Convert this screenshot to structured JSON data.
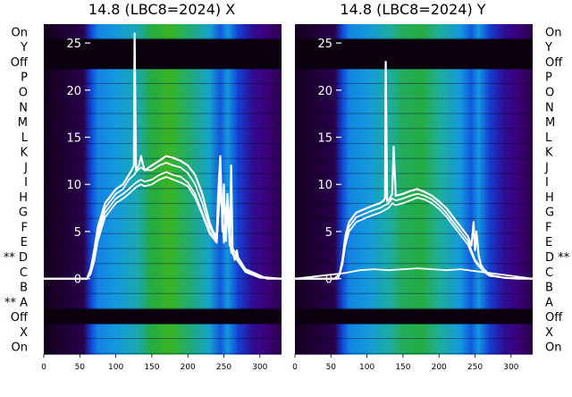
{
  "chart_data": [
    {
      "type": "heatmap",
      "title": "14.8 (LBC8=2024) X",
      "x_range": [
        0,
        330
      ],
      "x_ticks": [
        0,
        50,
        100,
        150,
        200,
        250,
        300
      ],
      "y_range": [
        -8,
        27
      ],
      "y_ticks": [
        0,
        5,
        10,
        15,
        20,
        25
      ],
      "row_labels": [
        "On",
        "Y",
        "Off",
        "P",
        "O",
        "N",
        "M",
        "L",
        "K",
        "J",
        "I",
        "H",
        "G",
        "F",
        "E",
        "** D",
        "C",
        "B",
        "** A",
        "Off",
        "X",
        "On"
      ],
      "heat_profile": [
        {
          "x": 0,
          "level": 0.0
        },
        {
          "x": 55,
          "level": 0.05
        },
        {
          "x": 65,
          "level": 0.3
        },
        {
          "x": 75,
          "level": 0.45
        },
        {
          "x": 100,
          "level": 0.5
        },
        {
          "x": 130,
          "level": 0.6
        },
        {
          "x": 150,
          "level": 0.75
        },
        {
          "x": 175,
          "level": 0.8
        },
        {
          "x": 200,
          "level": 0.7
        },
        {
          "x": 230,
          "level": 0.55
        },
        {
          "x": 245,
          "level": 0.35
        },
        {
          "x": 255,
          "level": 0.5
        },
        {
          "x": 270,
          "level": 0.3
        },
        {
          "x": 290,
          "level": 0.15
        },
        {
          "x": 310,
          "level": 0.1
        },
        {
          "x": 330,
          "level": 0.05
        }
      ],
      "dark_rows": [
        "Y",
        "Off"
      ],
      "series": [
        {
          "x": [
            0,
            60,
            65,
            70,
            75,
            85,
            100,
            110,
            118,
            122,
            125,
            126,
            128,
            132,
            135,
            138,
            140,
            150,
            160,
            170,
            180,
            190,
            200,
            210,
            220,
            225,
            230,
            235,
            240,
            242,
            245,
            248,
            250,
            253,
            255,
            258,
            260,
            262,
            265,
            268,
            270,
            280,
            295,
            310,
            320,
            330
          ],
          "y": [
            0,
            0,
            1.0,
            3.0,
            5.5,
            8.0,
            9.5,
            10.0,
            11.0,
            11.5,
            12.0,
            26.0,
            11.5,
            12.0,
            13.0,
            12.0,
            11.5,
            12.0,
            12.5,
            13.0,
            12.8,
            12.5,
            12.0,
            11.0,
            9.0,
            7.5,
            6.0,
            5.0,
            4.5,
            9.0,
            13.0,
            5.0,
            10.0,
            4.0,
            9.0,
            3.5,
            12.0,
            3.0,
            2.0,
            3.0,
            2.0,
            1.0,
            0.5,
            0,
            0,
            0
          ]
        },
        {
          "x": [
            0,
            60,
            65,
            70,
            75,
            85,
            100,
            110,
            118,
            125,
            130,
            135,
            140,
            150,
            160,
            170,
            180,
            190,
            200,
            210,
            220,
            230,
            240,
            245,
            250,
            255,
            260,
            268,
            280,
            300,
            330
          ],
          "y": [
            0,
            0,
            0.8,
            2.5,
            5.0,
            7.5,
            9.0,
            9.5,
            10.5,
            11.0,
            11.5,
            11.8,
            11.5,
            11.5,
            12.0,
            12.3,
            12.0,
            11.8,
            11.2,
            10.0,
            8.0,
            5.5,
            4.2,
            11.0,
            4.5,
            8.5,
            3.5,
            2.5,
            1.0,
            0.2,
            0
          ]
        },
        {
          "x": [
            0,
            60,
            65,
            70,
            75,
            85,
            100,
            110,
            118,
            125,
            130,
            135,
            140,
            150,
            160,
            170,
            180,
            190,
            200,
            210,
            220,
            230,
            240,
            245,
            250,
            255,
            260,
            268,
            280,
            300,
            330
          ],
          "y": [
            0,
            0,
            0.6,
            2.0,
            4.5,
            7.0,
            8.5,
            9.0,
            9.5,
            10.0,
            10.3,
            10.5,
            10.3,
            10.5,
            11.0,
            11.3,
            11.0,
            10.8,
            10.2,
            9.0,
            7.0,
            5.0,
            4.0,
            10.0,
            4.0,
            7.0,
            3.0,
            2.2,
            0.8,
            0.1,
            0
          ]
        },
        {
          "x": [
            0,
            60,
            65,
            70,
            75,
            85,
            100,
            110,
            118,
            125,
            130,
            135,
            140,
            150,
            160,
            170,
            180,
            190,
            200,
            210,
            220,
            230,
            240,
            245,
            250,
            255,
            260,
            268,
            280,
            300,
            330
          ],
          "y": [
            0,
            0,
            0.5,
            1.8,
            4.0,
            6.5,
            8.0,
            8.5,
            9.0,
            9.5,
            9.8,
            10.0,
            9.8,
            10.0,
            10.5,
            10.8,
            10.5,
            10.2,
            9.8,
            8.6,
            6.8,
            4.8,
            3.8,
            9.5,
            3.8,
            6.5,
            2.8,
            2.0,
            0.7,
            0.1,
            0
          ]
        }
      ]
    },
    {
      "type": "heatmap",
      "title": "14.8 (LBC8=2024) Y",
      "x_range": [
        0,
        330
      ],
      "x_ticks": [
        0,
        50,
        100,
        150,
        200,
        250,
        300
      ],
      "y_range": [
        -8,
        27
      ],
      "y_ticks": [
        0,
        5,
        10,
        15,
        20,
        25
      ],
      "row_labels": [
        "On",
        "Y",
        "Off",
        "P",
        "O",
        "N",
        "M",
        "L",
        "K",
        "J",
        "I",
        "H",
        "G",
        "F",
        "E",
        "D **",
        "C",
        "B",
        "A",
        "Off",
        "X",
        "On"
      ],
      "heat_profile": [
        {
          "x": 0,
          "level": 0.0
        },
        {
          "x": 55,
          "level": 0.05
        },
        {
          "x": 65,
          "level": 0.3
        },
        {
          "x": 75,
          "level": 0.45
        },
        {
          "x": 100,
          "level": 0.5
        },
        {
          "x": 130,
          "level": 0.62
        },
        {
          "x": 150,
          "level": 0.72
        },
        {
          "x": 175,
          "level": 0.75
        },
        {
          "x": 200,
          "level": 0.65
        },
        {
          "x": 230,
          "level": 0.5
        },
        {
          "x": 245,
          "level": 0.35
        },
        {
          "x": 255,
          "level": 0.5
        },
        {
          "x": 270,
          "level": 0.3
        },
        {
          "x": 290,
          "level": 0.15
        },
        {
          "x": 310,
          "level": 0.1
        },
        {
          "x": 330,
          "level": 0.05
        }
      ],
      "dark_rows": [
        "Y",
        "Off"
      ],
      "series": [
        {
          "x": [
            0,
            55,
            62,
            66,
            70,
            75,
            85,
            100,
            110,
            118,
            122,
            125,
            126,
            128,
            132,
            135,
            137,
            140,
            150,
            160,
            170,
            180,
            190,
            200,
            210,
            220,
            230,
            240,
            245,
            248,
            250,
            252,
            255,
            258,
            262,
            265,
            268,
            275,
            290,
            310,
            330
          ],
          "y": [
            0,
            0,
            0.5,
            2.0,
            4.5,
            6.0,
            7.0,
            7.5,
            7.8,
            8.0,
            8.2,
            8.5,
            23.0,
            8.2,
            8.5,
            9.0,
            14.0,
            8.8,
            9.0,
            9.3,
            9.5,
            9.2,
            8.8,
            8.2,
            7.5,
            6.5,
            5.5,
            4.5,
            3.5,
            6.0,
            3.0,
            5.0,
            2.5,
            1.5,
            1.0,
            0.8,
            0.5,
            0.3,
            0.1,
            0,
            0
          ]
        },
        {
          "x": [
            0,
            60,
            66,
            70,
            75,
            85,
            100,
            110,
            118,
            125,
            130,
            135,
            140,
            150,
            160,
            170,
            180,
            190,
            200,
            210,
            220,
            230,
            240,
            250,
            260,
            270,
            290,
            330
          ],
          "y": [
            0,
            0,
            1.8,
            4.0,
            5.5,
            6.5,
            7.0,
            7.3,
            7.5,
            7.8,
            8.0,
            8.5,
            8.3,
            8.5,
            8.8,
            9.0,
            8.8,
            8.4,
            7.8,
            7.0,
            6.0,
            5.0,
            4.0,
            2.0,
            1.0,
            0.4,
            0.1,
            0
          ]
        },
        {
          "x": [
            0,
            60,
            66,
            70,
            75,
            85,
            100,
            110,
            118,
            125,
            130,
            135,
            140,
            150,
            160,
            170,
            180,
            190,
            200,
            210,
            220,
            230,
            240,
            250,
            260,
            270,
            290,
            330
          ],
          "y": [
            0,
            0,
            1.5,
            3.5,
            5.0,
            6.0,
            6.5,
            6.8,
            7.0,
            7.3,
            7.5,
            8.0,
            7.8,
            8.0,
            8.3,
            8.6,
            8.4,
            8.0,
            7.4,
            6.6,
            5.6,
            4.6,
            3.6,
            1.8,
            0.9,
            0.3,
            0.1,
            0
          ]
        },
        {
          "x": [
            0,
            70,
            90,
            110,
            130,
            150,
            170,
            190,
            210,
            230,
            250,
            270,
            290,
            310,
            330
          ],
          "y": [
            0,
            0.6,
            0.9,
            1.0,
            0.9,
            1.0,
            1.1,
            1.0,
            0.9,
            1.0,
            0.8,
            0.6,
            0.4,
            0.2,
            0
          ]
        }
      ]
    }
  ]
}
